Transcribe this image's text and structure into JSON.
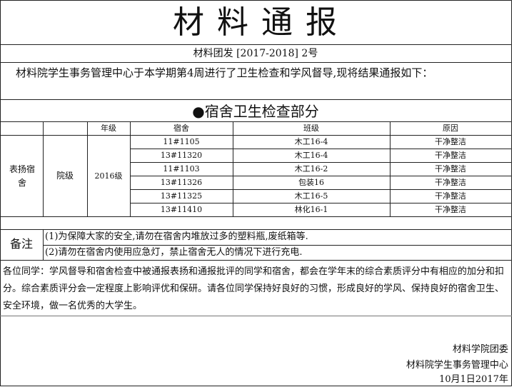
{
  "title": "材 料 通 报",
  "doc_number": "材料团发 [2017-2018] 2号",
  "intro": "材料院学生事务管理中心于本学期第4周进行了卫生检查和学风督导,现将结果通报如下：",
  "section_title": "●宿舍卫生检查部分",
  "table": {
    "headers": [
      "",
      "",
      "年级",
      "宿舍",
      "班级",
      "原因"
    ],
    "category": "表扬宿舍",
    "level": "院级",
    "grade": "2016级",
    "rows": [
      {
        "dorm": "11#1105",
        "class": "木工16-4",
        "reason": "干净整洁"
      },
      {
        "dorm": "13#11320",
        "class": "木工16-4",
        "reason": "干净整洁"
      },
      {
        "dorm": "11#1103",
        "class": "木工16-2",
        "reason": "干净整洁"
      },
      {
        "dorm": "13#11326",
        "class": "包装16",
        "reason": "干净整洁"
      },
      {
        "dorm": "13#11325",
        "class": "木工16-5",
        "reason": "干净整洁"
      },
      {
        "dorm": "13#11410",
        "class": "林化16-1",
        "reason": "干净整洁"
      }
    ]
  },
  "notes": {
    "label": "备注",
    "items": [
      "(1)为保障大家的安全,请勿在宿舍内堆放过多的塑料瓶,废纸箱等.",
      "(2)请勿在宿舍内使用应急灯，禁止宿舍无人的情况下进行充电."
    ]
  },
  "paragraph": "各位同学：学风督导和宿舍检查中被通报表扬和通报批评的同学和宿舍，都会在学年末的综合素质评分中有相应的加分和扣分。综合素质评分会一定程度上影响评优和保研。请各位同学保持好良好的习惯，形成良好的学风、保持良好的宿舍卫生、安全环境，做一名优秀的大学生。",
  "signature": {
    "org1": "材料学院团委",
    "org2": "材料院学生事务管理中心",
    "date": "10月1日2017年"
  }
}
